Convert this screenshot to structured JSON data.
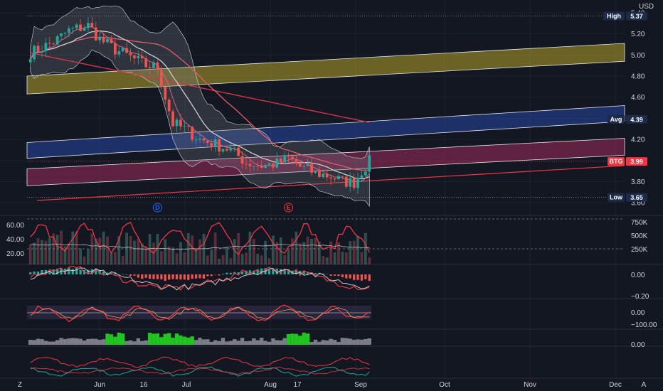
{
  "chart_data": [
    {
      "type": "candlestick",
      "panel": "price",
      "currency": "USD",
      "ylim": [
        3.6,
        5.4
      ],
      "y_ticks": [
        "3.60",
        "3.80",
        "4.00",
        "4.20",
        "4.40",
        "4.60",
        "4.80",
        "5.00",
        "5.20",
        "5.40"
      ],
      "x_labels": [
        "Jun",
        "16",
        "Jul",
        "Aug",
        "17",
        "Sep",
        "Oct",
        "Nov",
        "Dec"
      ],
      "markers": [
        {
          "label": "D",
          "bar": 33
        },
        {
          "label": "E",
          "bar": 67
        }
      ],
      "levels": [
        {
          "label": "High",
          "value": "5.37",
          "color": "#1c2b4a"
        },
        {
          "label": "Avg",
          "value": "4.39",
          "color": "#1c2b4a"
        },
        {
          "label": "BTG",
          "value": "3.99",
          "color": "#f23645"
        },
        {
          "label": "Low",
          "value": "3.65",
          "color": "#1c2b4a"
        }
      ],
      "bands": [
        {
          "name": "yellow",
          "y_start": [
            4.63,
            4.94
          ],
          "height": 0.17,
          "color": "#b5a32a"
        },
        {
          "name": "blue",
          "y_start": [
            4.02,
            4.37
          ],
          "height": 0.15,
          "color": "#2846a3"
        },
        {
          "name": "pink",
          "y_start": [
            3.76,
            4.05
          ],
          "height": 0.16,
          "color": "#9c2a5a"
        }
      ],
      "close_keypoints": [
        [
          0,
          5.02
        ],
        [
          6,
          5.12
        ],
        [
          10,
          5.23
        ],
        [
          15,
          5.28
        ],
        [
          18,
          5.15
        ],
        [
          22,
          5.05
        ],
        [
          26,
          4.98
        ],
        [
          30,
          4.9
        ],
        [
          33,
          4.88
        ],
        [
          35,
          4.6
        ],
        [
          37,
          4.35
        ],
        [
          40,
          4.3
        ],
        [
          44,
          4.2
        ],
        [
          48,
          4.15
        ],
        [
          52,
          4.1
        ],
        [
          56,
          3.98
        ],
        [
          60,
          3.95
        ],
        [
          64,
          3.97
        ],
        [
          67,
          4.02
        ],
        [
          70,
          3.94
        ],
        [
          74,
          3.88
        ],
        [
          78,
          3.85
        ],
        [
          81,
          3.8
        ],
        [
          84,
          3.79
        ],
        [
          86,
          3.9
        ],
        [
          88,
          3.99
        ]
      ],
      "colors": {
        "up": "#26a69a",
        "down": "#ef5350",
        "ma_red": "#d8344a",
        "ma_pink": "#e35d6a",
        "ma_white": "#d8d8d8",
        "bb_fill": "#7b7e88"
      }
    },
    {
      "type": "line",
      "panel": "rsi",
      "y_ticks": [
        "60.00",
        "40.00",
        "20.00"
      ],
      "right_ticks": [
        "750K",
        "500K",
        "250K"
      ],
      "color": "#f23645"
    },
    {
      "type": "histogram",
      "panel": "macd",
      "y_ticks": [
        "0.00",
        "−0.20"
      ],
      "color_pos": "#26a69a",
      "color_neg": "#ef5350"
    },
    {
      "type": "line",
      "panel": "oscillator",
      "y_ticks": [
        "0.00",
        "−100.00"
      ],
      "color": "#f23645"
    },
    {
      "type": "area",
      "panel": "volume_flow",
      "y_ticks": [
        "0.00"
      ],
      "highlight_color": "#22c422"
    },
    {
      "type": "line",
      "panel": "dmi",
      "color": "#f23645"
    }
  ],
  "footer": {
    "left": "Z",
    "right": "A"
  }
}
